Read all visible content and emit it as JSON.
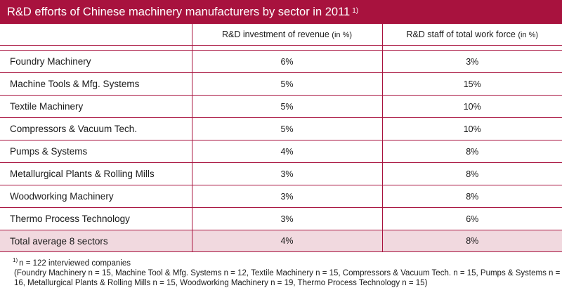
{
  "title": "R&D efforts of Chinese machinery manufacturers by sector in 2011",
  "title_footnote_mark": "1)",
  "table": {
    "columns": [
      {
        "label": "",
        "unit": ""
      },
      {
        "label": "R&D investment of revenue",
        "unit": "(in %)"
      },
      {
        "label": "R&D staff of total work force",
        "unit": "(in %)"
      }
    ],
    "rows": [
      {
        "sector": "Foundry Machinery",
        "investment": "6%",
        "staff": "3%"
      },
      {
        "sector": "Machine Tools & Mfg. Systems",
        "investment": "5%",
        "staff": "15%"
      },
      {
        "sector": "Textile Machinery",
        "investment": "5%",
        "staff": "10%"
      },
      {
        "sector": "Compressors & Vacuum Tech.",
        "investment": "5%",
        "staff": "10%"
      },
      {
        "sector": "Pumps & Systems",
        "investment": "4%",
        "staff": "8%"
      },
      {
        "sector": "Metallurgical Plants & Rolling Mills",
        "investment": "3%",
        "staff": "8%"
      },
      {
        "sector": "Woodworking Machinery",
        "investment": "3%",
        "staff": "8%"
      },
      {
        "sector": "Thermo Process Technology",
        "investment": "3%",
        "staff": "6%"
      }
    ],
    "total": {
      "sector": "Total average 8 sectors",
      "investment": "4%",
      "staff": "8%"
    }
  },
  "footnote": {
    "mark": "1)",
    "line1": "n = 122 interviewed companies",
    "detail": "(Foundry Machinery n = 15, Machine Tool & Mfg. Systems n = 12, Textile Machinery n = 15, Compressors & Vacuum Tech. n = 15, Pumps & Systems n = 16, Metallurgical Plants & Rolling Mills n = 15, Woodworking Machinery n = 19, Thermo Process Technology n = 15)"
  },
  "colors": {
    "accent": "#a8123e",
    "total_row_bg": "#f1d9df"
  }
}
